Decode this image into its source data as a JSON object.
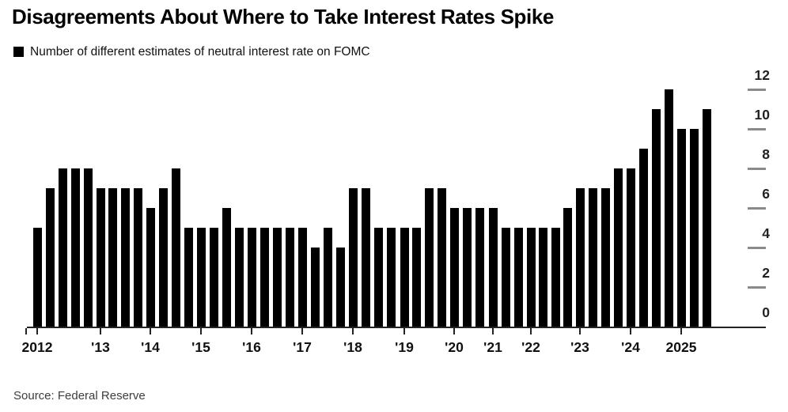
{
  "title": "Disagreements About Where to Take Interest Rates Spike",
  "legend": {
    "label": "Number of different estimates of neutral interest rate on FOMC"
  },
  "source": "Source: Federal Reserve",
  "colors": {
    "bar": "#000000",
    "axis_line": "#222222",
    "tick_dash": "#8a8a8a",
    "label_text": "#111111"
  },
  "chart_data": {
    "type": "bar",
    "title": "Disagreements About Where to Take Interest Rates Spike",
    "legend_label": "Number of different estimates of neutral interest rate on FOMC",
    "source": "Source: Federal Reserve",
    "xlabel": "",
    "ylabel": "",
    "ylim": [
      0,
      12
    ],
    "yticks": [
      0,
      2,
      4,
      6,
      8,
      10,
      12
    ],
    "y_axis_position": "right",
    "grid": false,
    "x_tick_labels": [
      "2012",
      "'13",
      "'14",
      "'15",
      "'16",
      "'17",
      "'18",
      "'19",
      "'20",
      "'21",
      "'22",
      "'23",
      "'24",
      "2025"
    ],
    "years": [
      {
        "year": "2012",
        "values": [
          5,
          7,
          8,
          8,
          8
        ]
      },
      {
        "year": "2013",
        "values": [
          7,
          7,
          7,
          7
        ]
      },
      {
        "year": "2014",
        "values": [
          6,
          7,
          8,
          5
        ]
      },
      {
        "year": "2015",
        "values": [
          5,
          5,
          6,
          5
        ]
      },
      {
        "year": "2016",
        "values": [
          5,
          5,
          5,
          5
        ]
      },
      {
        "year": "2017",
        "values": [
          5,
          4,
          5,
          4
        ]
      },
      {
        "year": "2018",
        "values": [
          7,
          7,
          5,
          5
        ]
      },
      {
        "year": "2019",
        "values": [
          5,
          5,
          7,
          7
        ]
      },
      {
        "year": "2020",
        "values": [
          6,
          6,
          6
        ]
      },
      {
        "year": "2021",
        "values": [
          6,
          5,
          5
        ]
      },
      {
        "year": "2022",
        "values": [
          5,
          5,
          5,
          6
        ]
      },
      {
        "year": "2023",
        "values": [
          7,
          7,
          7,
          8
        ]
      },
      {
        "year": "2024",
        "values": [
          8,
          9,
          11,
          12
        ]
      },
      {
        "year": "2025",
        "values": [
          10,
          10,
          11
        ]
      }
    ]
  }
}
